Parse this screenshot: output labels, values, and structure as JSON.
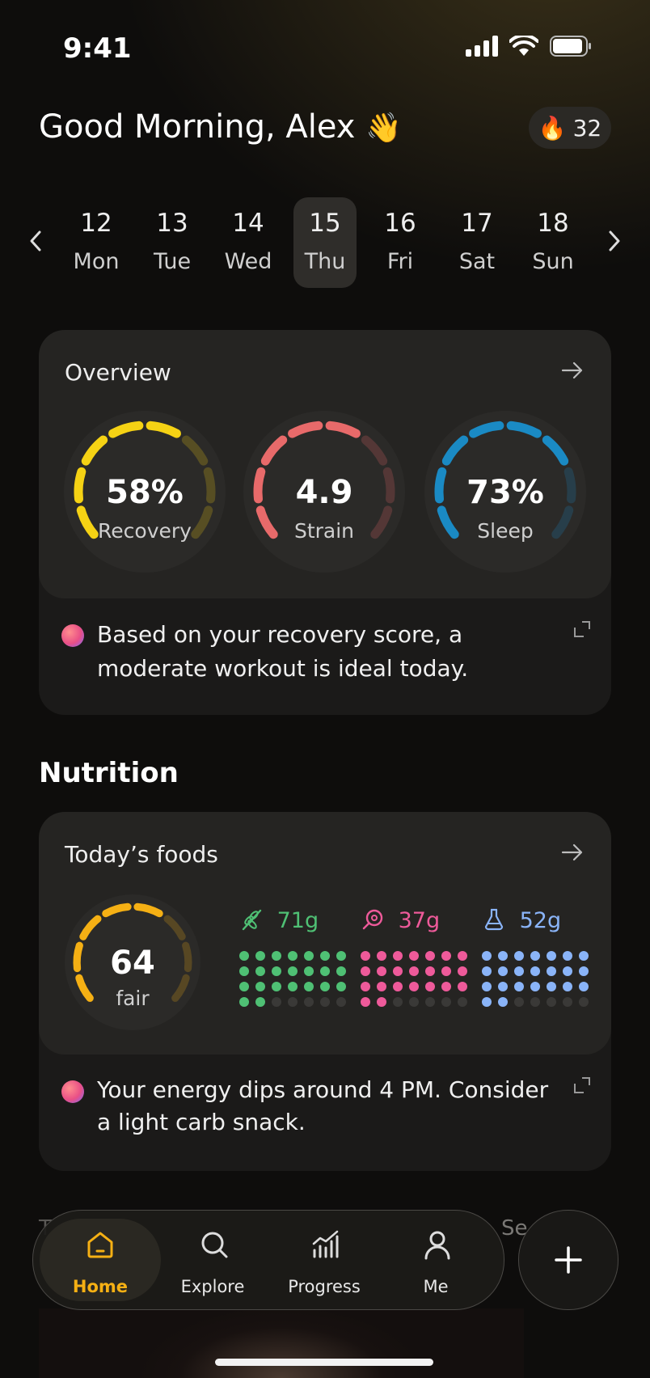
{
  "status_bar": {
    "time": "9:41"
  },
  "header": {
    "greeting": "Good Morning, Alex",
    "wave_emoji": "👋",
    "streak_emoji": "🔥",
    "streak_count": "32"
  },
  "calendar": {
    "days": [
      {
        "num": "12",
        "wd": "Mon"
      },
      {
        "num": "13",
        "wd": "Tue"
      },
      {
        "num": "14",
        "wd": "Wed"
      },
      {
        "num": "15",
        "wd": "Thu",
        "selected": true
      },
      {
        "num": "16",
        "wd": "Fri"
      },
      {
        "num": "17",
        "wd": "Sat"
      },
      {
        "num": "18",
        "wd": "Sun"
      }
    ]
  },
  "overview": {
    "title": "Overview",
    "rings": [
      {
        "value": "58%",
        "label": "Recovery",
        "progress": 0.58,
        "color": "#f5d214"
      },
      {
        "value": "4.9",
        "label": "Strain",
        "progress": 0.62,
        "color": "#e86a6a"
      },
      {
        "value": "73%",
        "label": "Sleep",
        "progress": 0.73,
        "color": "#1a8ac4"
      }
    ],
    "tip": "Based on your recovery score, a moderate workout is ideal today."
  },
  "nutrition": {
    "section_title": "Nutrition",
    "card_title": "Today’s foods",
    "score": {
      "value": "64",
      "label": "fair",
      "progress": 0.64,
      "color": "#f5b014"
    },
    "macros": [
      {
        "amount": "71g",
        "icon": "wheat-icon",
        "color": "#4fc074",
        "filled": 23
      },
      {
        "amount": "37g",
        "icon": "meat-icon",
        "color": "#ee5a9a",
        "filled": 23
      },
      {
        "amount": "52g",
        "icon": "flask-icon",
        "color": "#8ab4f8",
        "filled": 23
      }
    ],
    "tip": "Your energy dips around 4 PM. Consider a light carb snack."
  },
  "peek": {
    "left": "T",
    "right": "Se"
  },
  "nav": {
    "items": [
      {
        "label": "Home",
        "active": true
      },
      {
        "label": "Explore"
      },
      {
        "label": "Progress"
      },
      {
        "label": "Me"
      }
    ],
    "accent": "#f5b014"
  }
}
